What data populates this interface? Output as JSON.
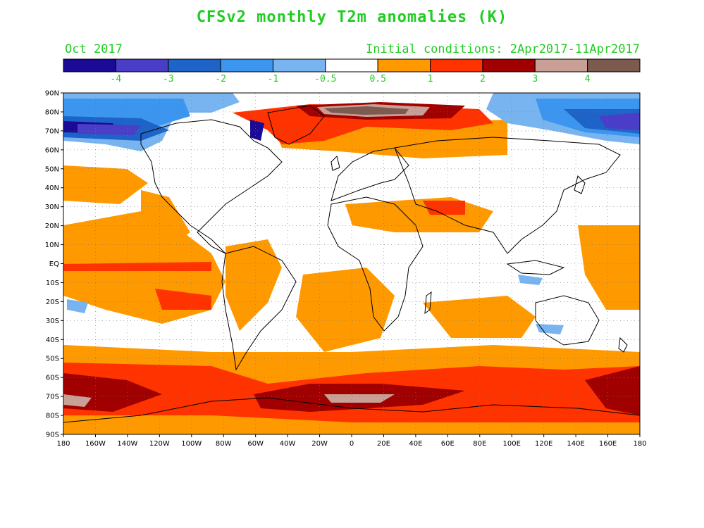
{
  "title": "CFSv2 monthly T2m anomalies (K)",
  "valid_month": "Oct 2017",
  "initial_conditions": "Initial conditions: 2Apr2017-11Apr2017",
  "colorbar": {
    "colors": [
      "#1a0a96",
      "#4a3ec8",
      "#1e64c8",
      "#3c96f0",
      "#78b4f0",
      "#ffffff",
      "#ff9900",
      "#ff3300",
      "#a00000",
      "#c8a096",
      "#7d5a50"
    ],
    "labels": [
      "-4",
      "-3",
      "-2",
      "-1",
      "-0.5",
      "0.5",
      "1",
      "2",
      "3",
      "4"
    ]
  },
  "lat_labels": [
    "90N",
    "80N",
    "70N",
    "60N",
    "50N",
    "40N",
    "30N",
    "20N",
    "10N",
    "EQ",
    "10S",
    "20S",
    "30S",
    "40S",
    "50S",
    "60S",
    "70S",
    "80S",
    "90S"
  ],
  "lon_labels": [
    "180",
    "160W",
    "140W",
    "120W",
    "100W",
    "80W",
    "60W",
    "40W",
    "20W",
    "0",
    "20E",
    "40E",
    "60E",
    "80E",
    "100E",
    "120E",
    "140E",
    "160E",
    "180"
  ]
}
